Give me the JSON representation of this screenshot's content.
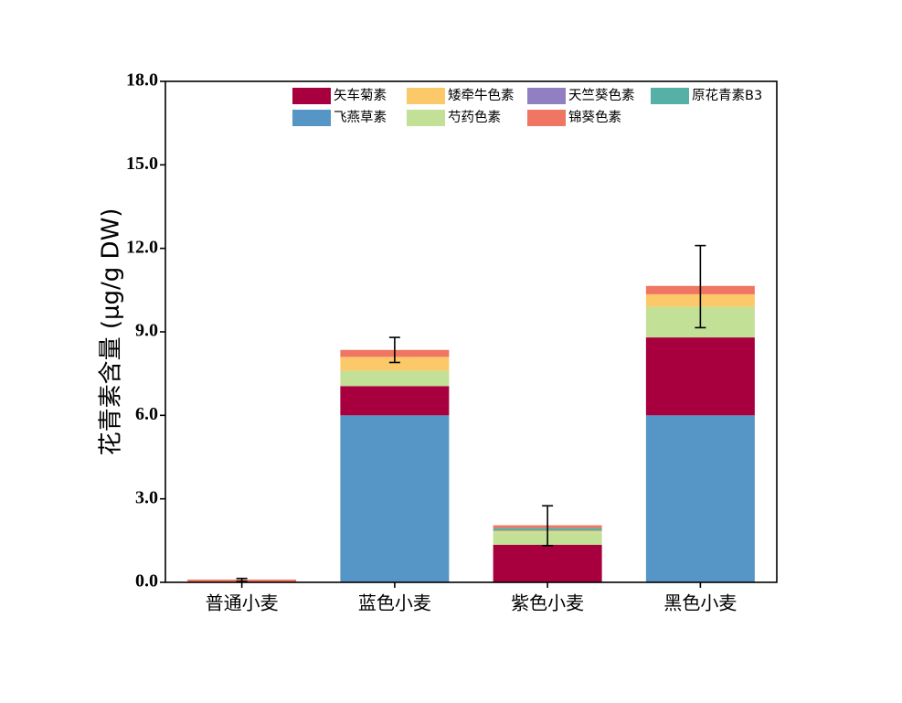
{
  "chart_data": {
    "type": "bar",
    "stacked": true,
    "categories": [
      "普通小麦",
      "蓝色小麦",
      "紫色小麦",
      "黑色小麦"
    ],
    "ylabel": "花青素含量 (μg/g DW)",
    "ylim": [
      0,
      18
    ],
    "yticks": [
      "0.0",
      "3.0",
      "6.0",
      "9.0",
      "12.0",
      "15.0",
      "18.0"
    ],
    "grid": false,
    "legend_position": "top-right",
    "series": [
      {
        "name": "飞燕草素",
        "color": "#5696c7",
        "values": [
          0,
          6.0,
          0,
          6.0
        ]
      },
      {
        "name": "矢车菊素",
        "color": "#a8003f",
        "values": [
          0,
          1.05,
          1.35,
          2.8
        ]
      },
      {
        "name": "芍药色素",
        "color": "#c2e096",
        "values": [
          0,
          0.55,
          0.45,
          1.1
        ]
      },
      {
        "name": "矮牵牛色素",
        "color": "#fcc96a",
        "values": [
          0,
          0.5,
          0.05,
          0.45
        ]
      },
      {
        "name": "天竺葵色素",
        "color": "#9080c2",
        "values": [
          0,
          0,
          0,
          0
        ]
      },
      {
        "name": "原花青素B3",
        "color": "#56b0a6",
        "values": [
          0,
          0,
          0.1,
          0
        ]
      },
      {
        "name": "锦葵色素",
        "color": "#ef7662",
        "values": [
          0.1,
          0.25,
          0.1,
          0.3
        ]
      }
    ],
    "legend_order": [
      "矢车菊素",
      "矮牵牛色素",
      "天竺葵色素",
      "原花青素B3",
      "飞燕草素",
      "芍药色素",
      "锦葵色素"
    ],
    "error_bars": [
      {
        "center": 0.1,
        "low": 0.03,
        "high": 0.14
      },
      {
        "center": 8.35,
        "low": 7.9,
        "high": 8.8
      },
      {
        "center": 2.05,
        "low": 1.32,
        "high": 2.75
      },
      {
        "center": 10.65,
        "low": 9.15,
        "high": 12.1
      }
    ]
  }
}
